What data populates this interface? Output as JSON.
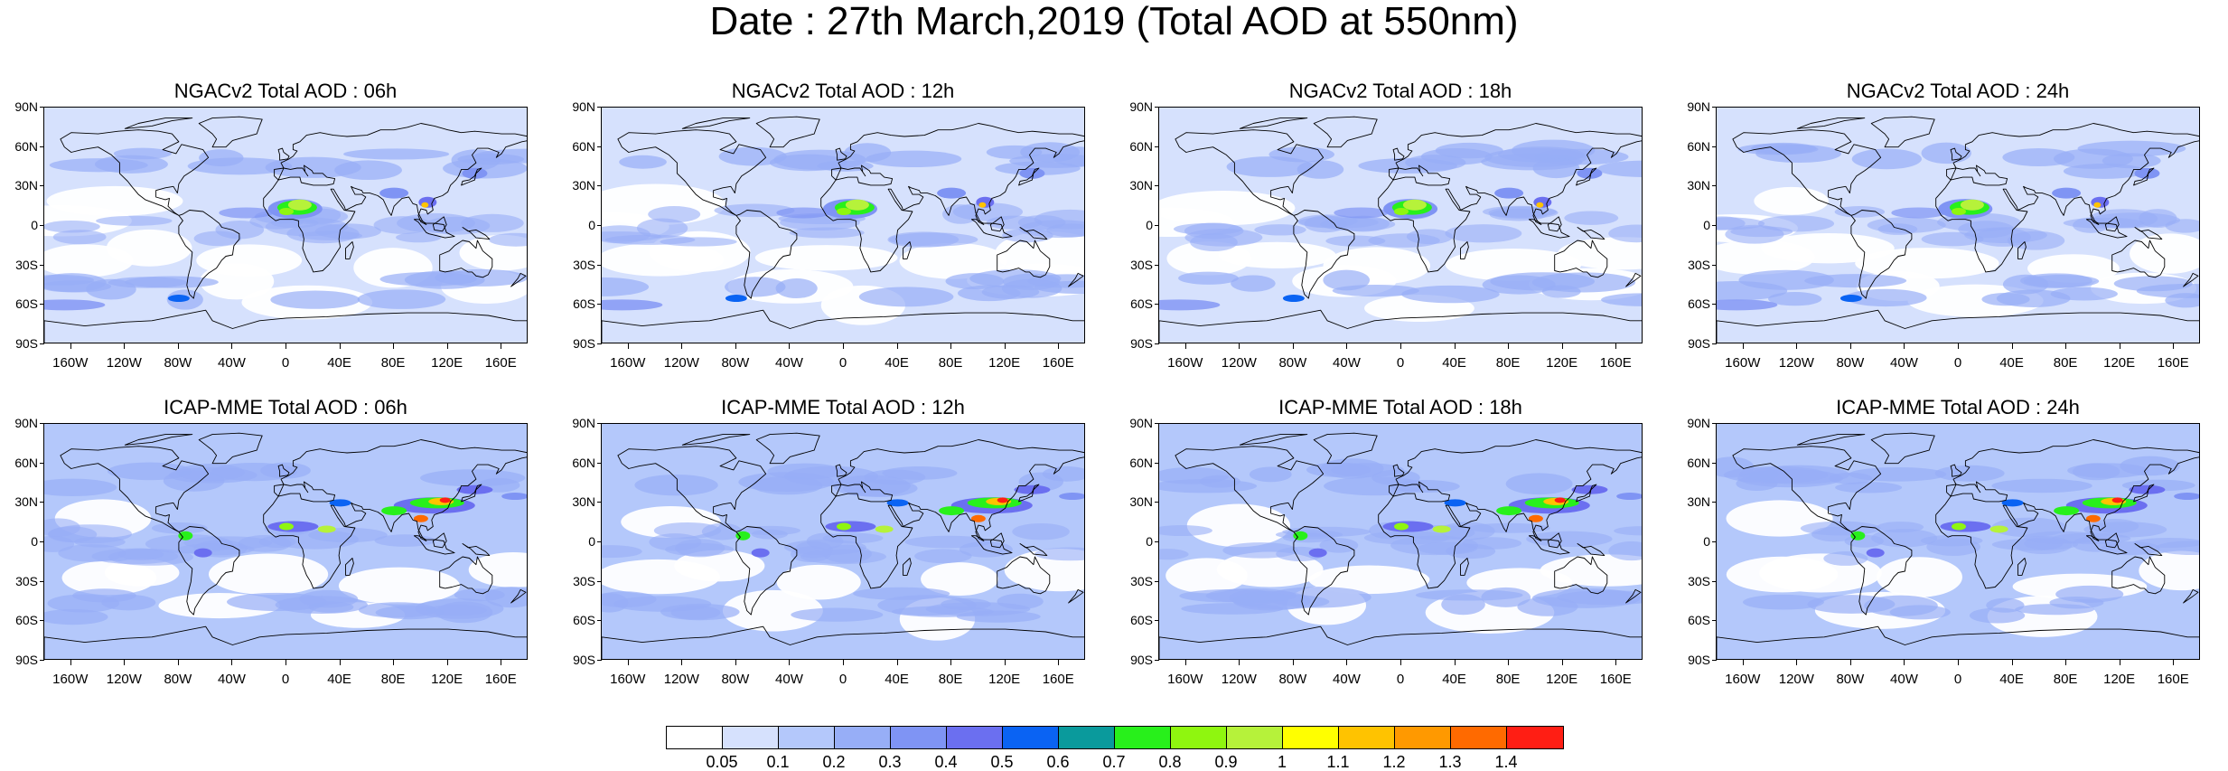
{
  "figure": {
    "title": "Date : 27th March,2019 (Total AOD at 550nm)"
  },
  "panels": [
    {
      "title": "NGACv2 Total AOD : 06h",
      "model": "ngac",
      "hour": 6
    },
    {
      "title": "NGACv2 Total AOD : 12h",
      "model": "ngac",
      "hour": 12
    },
    {
      "title": "NGACv2 Total AOD : 18h",
      "model": "ngac",
      "hour": 18
    },
    {
      "title": "NGACv2 Total AOD : 24h",
      "model": "ngac",
      "hour": 24
    },
    {
      "title": "ICAP-MME Total AOD : 06h",
      "model": "icap",
      "hour": 6
    },
    {
      "title": "ICAP-MME Total AOD : 12h",
      "model": "icap",
      "hour": 12
    },
    {
      "title": "ICAP-MME Total AOD : 18h",
      "model": "icap",
      "hour": 18
    },
    {
      "title": "ICAP-MME Total AOD : 24h",
      "model": "icap",
      "hour": 24
    }
  ],
  "axes": {
    "lat_labels": [
      "90N",
      "60N",
      "30N",
      "0",
      "30S",
      "60S",
      "90S"
    ],
    "lat_values": [
      90,
      60,
      30,
      0,
      -30,
      -60,
      -90
    ],
    "lon_labels": [
      "160W",
      "120W",
      "80W",
      "40W",
      "0",
      "40E",
      "80E",
      "120E",
      "160E"
    ],
    "lon_values": [
      -160,
      -120,
      -80,
      -40,
      0,
      40,
      80,
      120,
      160
    ]
  },
  "colorbar": {
    "labels": [
      "0.05",
      "0.1",
      "0.2",
      "0.3",
      "0.4",
      "0.5",
      "0.6",
      "0.7",
      "0.8",
      "0.9",
      "1",
      "1.1",
      "1.2",
      "1.3",
      "1.4"
    ],
    "colors": [
      "#ffffff",
      "#d6e1fd",
      "#b4c8fb",
      "#97aef7",
      "#7f94f4",
      "#6b6ff0",
      "#0a63f3",
      "#0a9a9c",
      "#28f01b",
      "#8ff60f",
      "#b6f23a",
      "#ffff00",
      "#ffc300",
      "#ff9900",
      "#ff6a00",
      "#ff1e14"
    ]
  },
  "map": {
    "ocean_color": "#ffffff",
    "coastline_color": "#000000"
  }
}
